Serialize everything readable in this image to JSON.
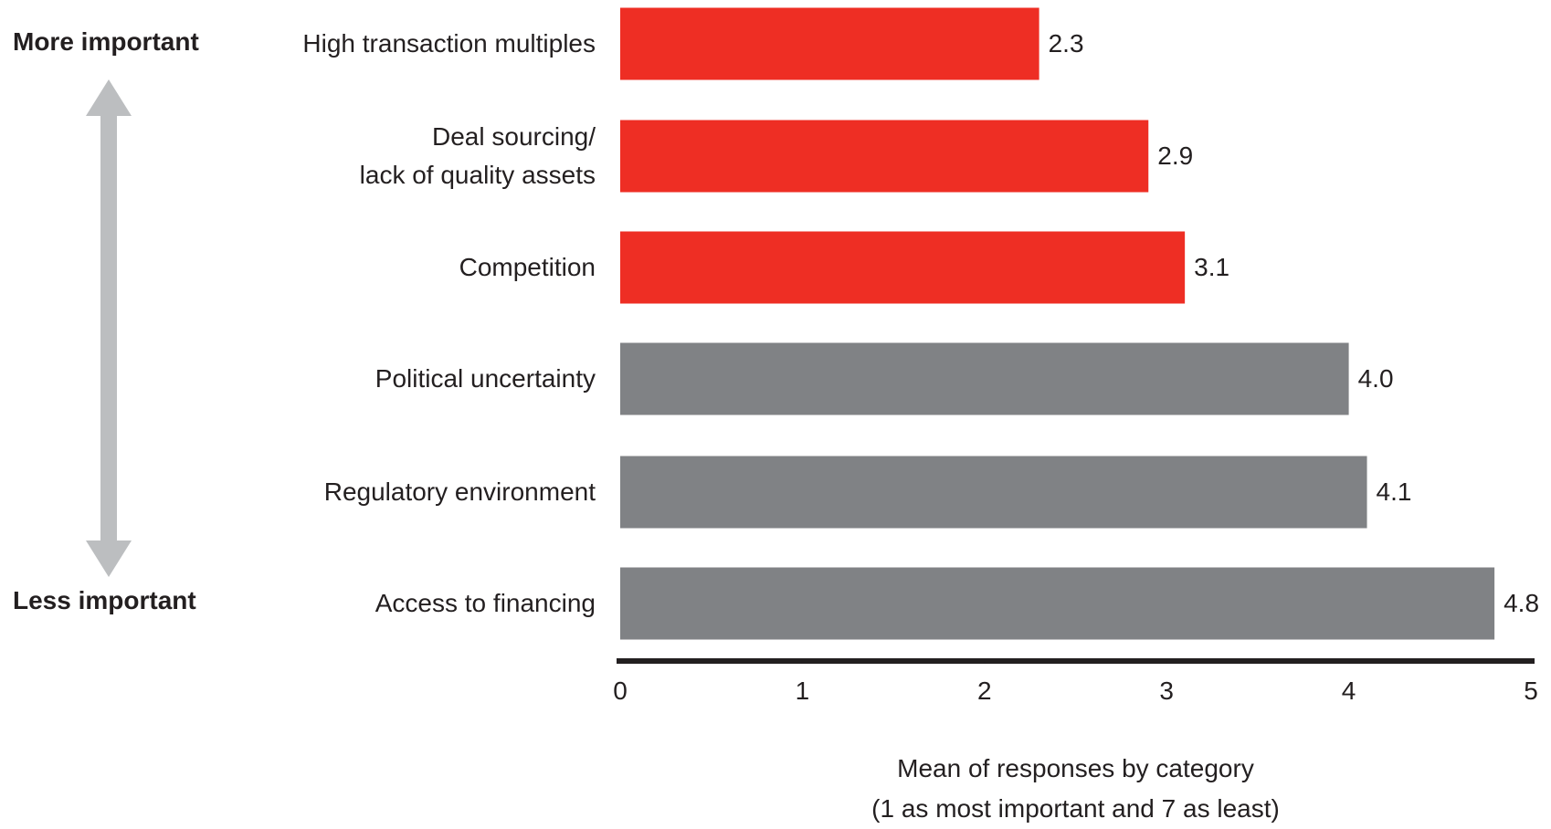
{
  "chart_data": {
    "type": "barh",
    "categories": [
      "High transaction multiples",
      "Deal sourcing/\nlack of quality assets",
      "Competition",
      "Political uncertainty",
      "Regulatory environment",
      "Access to financing"
    ],
    "values": [
      2.3,
      2.9,
      3.1,
      4.0,
      4.1,
      4.8
    ],
    "value_labels": [
      "2.3",
      "2.9",
      "3.1",
      "4.0",
      "4.1",
      "4.8"
    ],
    "colors": [
      "#ee2e24",
      "#ee2e24",
      "#ee2e24",
      "#808285",
      "#808285",
      "#808285"
    ],
    "xlim": [
      0,
      5
    ],
    "xticks": [
      0,
      1,
      2,
      3,
      4,
      5
    ],
    "xlabel": "Mean of responses by category\n(1 as most important and 7 as least)",
    "annotations": {
      "top": "More important",
      "bottom": "Less important"
    }
  }
}
